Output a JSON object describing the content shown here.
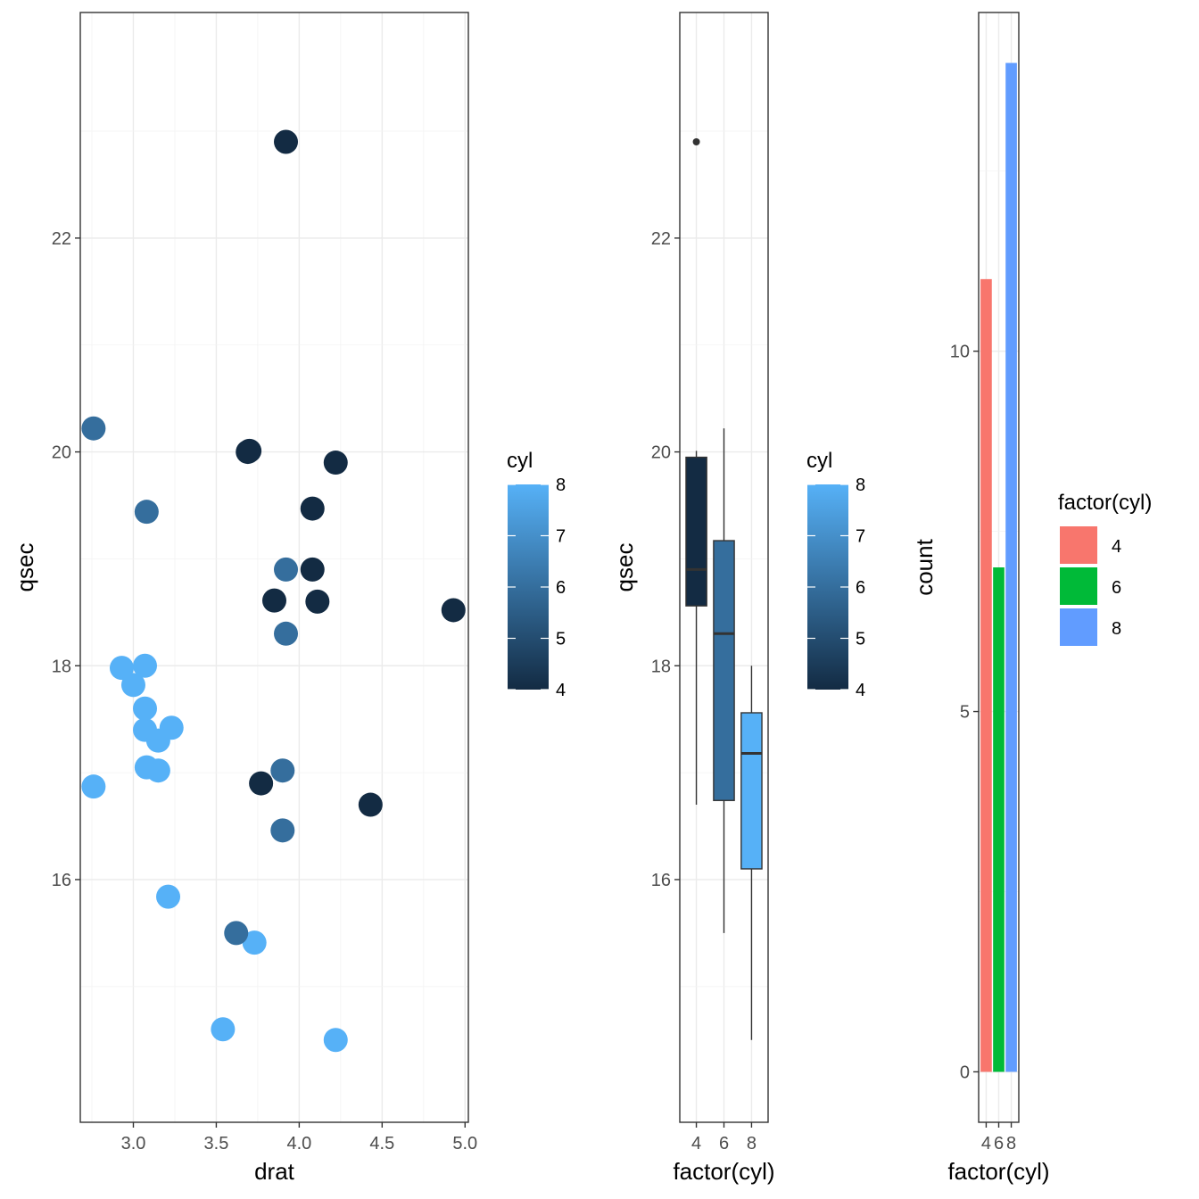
{
  "chart_data": [
    {
      "type": "scatter",
      "xlabel": "drat",
      "ylabel": "qsec",
      "xlim": [
        2.68,
        5.02
      ],
      "ylim": [
        13.73,
        24.11
      ],
      "x_ticks": [
        3.0,
        3.5,
        4.0,
        4.5,
        5.0
      ],
      "x_tick_labels": [
        "3.0",
        "3.5",
        "4.0",
        "4.5",
        "5.0"
      ],
      "y_ticks": [
        16,
        18,
        20,
        22
      ],
      "y_tick_labels": [
        "16",
        "18",
        "20",
        "22"
      ],
      "grid": true,
      "color_variable": "cyl",
      "legend": {
        "title": "cyl",
        "type": "colorbar",
        "placement": "right",
        "min": 4,
        "max": 8,
        "breaks": [
          4,
          5,
          6,
          7,
          8
        ],
        "break_labels": [
          "4",
          "5",
          "6",
          "7",
          "8"
        ],
        "low_color": "#132B43",
        "high_color": "#56B1F7"
      },
      "points": [
        {
          "x": 3.9,
          "y": 16.46,
          "cyl": 6
        },
        {
          "x": 3.9,
          "y": 17.02,
          "cyl": 6
        },
        {
          "x": 3.85,
          "y": 18.61,
          "cyl": 4
        },
        {
          "x": 3.08,
          "y": 19.44,
          "cyl": 6
        },
        {
          "x": 3.15,
          "y": 17.02,
          "cyl": 8
        },
        {
          "x": 2.76,
          "y": 20.22,
          "cyl": 6
        },
        {
          "x": 3.21,
          "y": 15.84,
          "cyl": 8
        },
        {
          "x": 3.69,
          "y": 20.0,
          "cyl": 4
        },
        {
          "x": 3.92,
          "y": 22.9,
          "cyl": 4
        },
        {
          "x": 3.92,
          "y": 18.3,
          "cyl": 6
        },
        {
          "x": 3.92,
          "y": 18.9,
          "cyl": 6
        },
        {
          "x": 3.07,
          "y": 17.4,
          "cyl": 8
        },
        {
          "x": 3.07,
          "y": 17.6,
          "cyl": 8
        },
        {
          "x": 3.07,
          "y": 18.0,
          "cyl": 8
        },
        {
          "x": 2.93,
          "y": 17.98,
          "cyl": 8
        },
        {
          "x": 3.0,
          "y": 17.82,
          "cyl": 8
        },
        {
          "x": 3.23,
          "y": 17.42,
          "cyl": 8
        },
        {
          "x": 4.08,
          "y": 19.47,
          "cyl": 4
        },
        {
          "x": 4.93,
          "y": 18.52,
          "cyl": 4
        },
        {
          "x": 4.22,
          "y": 19.9,
          "cyl": 4
        },
        {
          "x": 3.7,
          "y": 20.01,
          "cyl": 4
        },
        {
          "x": 2.76,
          "y": 16.87,
          "cyl": 8
        },
        {
          "x": 3.15,
          "y": 17.3,
          "cyl": 8
        },
        {
          "x": 3.73,
          "y": 15.41,
          "cyl": 8
        },
        {
          "x": 3.08,
          "y": 17.05,
          "cyl": 8
        },
        {
          "x": 4.08,
          "y": 18.9,
          "cyl": 4
        },
        {
          "x": 4.43,
          "y": 16.7,
          "cyl": 4
        },
        {
          "x": 3.77,
          "y": 16.9,
          "cyl": 4
        },
        {
          "x": 4.22,
          "y": 14.5,
          "cyl": 8
        },
        {
          "x": 3.62,
          "y": 15.5,
          "cyl": 6
        },
        {
          "x": 3.54,
          "y": 14.6,
          "cyl": 8
        },
        {
          "x": 4.11,
          "y": 18.6,
          "cyl": 4
        }
      ]
    },
    {
      "type": "box",
      "xlabel": "factor(cyl)",
      "ylabel": "qsec",
      "ylim": [
        13.73,
        24.11
      ],
      "y_ticks": [
        16,
        18,
        20,
        22
      ],
      "y_tick_labels": [
        "16",
        "18",
        "20",
        "22"
      ],
      "grid": true,
      "categories": [
        "4",
        "6",
        "8"
      ],
      "color_variable": "cyl",
      "legend": {
        "title": "cyl",
        "type": "colorbar",
        "placement": "right",
        "min": 4,
        "max": 8,
        "breaks": [
          4,
          5,
          6,
          7,
          8
        ],
        "break_labels": [
          "4",
          "5",
          "6",
          "7",
          "8"
        ],
        "low_color": "#132B43",
        "high_color": "#56B1F7"
      },
      "boxes": [
        {
          "category": "4",
          "cyl": 4,
          "lower_whisker": 16.7,
          "q1": 18.56,
          "median": 18.9,
          "q3": 19.95,
          "upper_whisker": 20.01,
          "outliers": [
            22.9
          ]
        },
        {
          "category": "6",
          "cyl": 6,
          "lower_whisker": 15.5,
          "q1": 16.74,
          "median": 18.3,
          "q3": 19.17,
          "upper_whisker": 20.22,
          "outliers": []
        },
        {
          "category": "8",
          "cyl": 8,
          "lower_whisker": 14.5,
          "q1": 16.1,
          "median": 17.18,
          "q3": 17.56,
          "upper_whisker": 18.0,
          "outliers": []
        }
      ]
    },
    {
      "type": "bar",
      "xlabel": "factor(cyl)",
      "ylabel": "count",
      "categories": [
        "4",
        "6",
        "8"
      ],
      "values": [
        11,
        7,
        14
      ],
      "ylim": [
        -0.7,
        14.7
      ],
      "y_ticks": [
        0,
        5,
        10
      ],
      "y_tick_labels": [
        "0",
        "5",
        "10"
      ],
      "grid": true,
      "legend": {
        "title": "factor(cyl)",
        "type": "discrete",
        "placement": "right",
        "entries": [
          {
            "label": "4",
            "color": "#F8766D"
          },
          {
            "label": "6",
            "color": "#00BA38"
          },
          {
            "label": "8",
            "color": "#619CFF"
          }
        ]
      }
    }
  ]
}
